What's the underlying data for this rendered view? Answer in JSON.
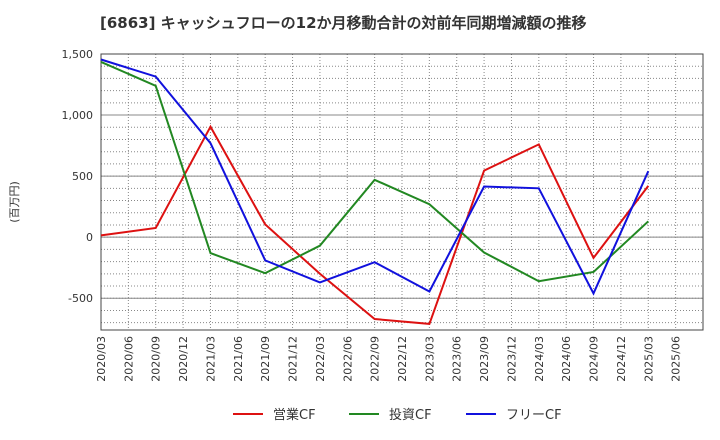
{
  "chart_data": {
    "type": "line",
    "title": "[6863]  キャッシュフローの12か月移動合計の対前年同期増減額の推移",
    "ylabel": "(百万円)",
    "xlabel": "",
    "ylim": [
      -760,
      1500
    ],
    "yticks": [
      1500,
      1000,
      500,
      0,
      -500
    ],
    "ytick_labels": [
      "1,500",
      "1,000",
      "500",
      "0",
      "-500"
    ],
    "categories": [
      "2020/03",
      "2020/06",
      "2020/09",
      "2020/12",
      "2021/03",
      "2021/06",
      "2021/09",
      "2021/12",
      "2022/03",
      "2022/06",
      "2022/09",
      "2022/12",
      "2023/03",
      "2023/06",
      "2023/09",
      "2023/12",
      "2024/03",
      "2024/06",
      "2024/09",
      "2024/12",
      "2025/03",
      "2025/06"
    ],
    "grid": true,
    "legend_position": "bottom",
    "series": [
      {
        "name": "営業CF",
        "color": "#dd1111",
        "values": [
          15,
          null,
          75,
          null,
          905,
          null,
          105,
          null,
          -300,
          null,
          -670,
          null,
          -710,
          null,
          545,
          null,
          760,
          null,
          -170,
          null,
          420,
          null
        ]
      },
      {
        "name": "投資CF",
        "color": "#228822",
        "values": [
          1435,
          null,
          1240,
          null,
          -130,
          null,
          -295,
          null,
          -70,
          null,
          470,
          null,
          270,
          null,
          -125,
          null,
          -360,
          null,
          -285,
          null,
          130,
          null
        ]
      },
      {
        "name": "フリーCF",
        "color": "#1111dd",
        "values": [
          1455,
          null,
          1315,
          null,
          770,
          null,
          -190,
          null,
          -370,
          null,
          -205,
          null,
          -445,
          null,
          415,
          null,
          400,
          null,
          -460,
          null,
          540,
          null
        ]
      }
    ]
  }
}
